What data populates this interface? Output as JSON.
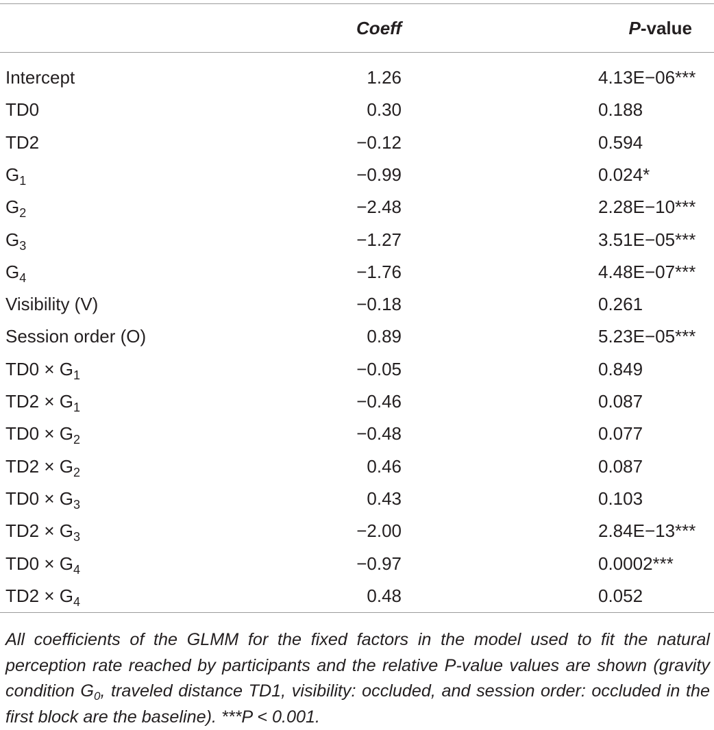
{
  "table": {
    "header": {
      "coeff": "Coeff",
      "pvalue_p": "P",
      "pvalue_rest": "-value"
    },
    "rows": [
      {
        "label": "Intercept",
        "coeff": "1.26",
        "p": "4.13E−06***"
      },
      {
        "label": "TD0",
        "coeff": "0.30",
        "p": "0.188"
      },
      {
        "label": "TD2",
        "coeff": "−0.12",
        "p": "0.594"
      },
      {
        "label": "G",
        "sub": "1",
        "coeff": "−0.99",
        "p": "0.024*"
      },
      {
        "label": "G",
        "sub": "2",
        "coeff": "−2.48",
        "p": "2.28E−10***"
      },
      {
        "label": "G",
        "sub": "3",
        "coeff": "−1.27",
        "p": "3.51E−05***"
      },
      {
        "label": "G",
        "sub": "4",
        "coeff": "−1.76",
        "p": "4.48E−07***"
      },
      {
        "label": "Visibility (V)",
        "coeff": "−0.18",
        "p": "0.261"
      },
      {
        "label": "Session order (O)",
        "coeff": "0.89",
        "p": "5.23E−05***"
      },
      {
        "label": "TD0 × G",
        "sub": "1",
        "coeff": "−0.05",
        "p": "0.849"
      },
      {
        "label": "TD2 × G",
        "sub": "1",
        "coeff": "−0.46",
        "p": "0.087"
      },
      {
        "label": "TD0 × G",
        "sub": "2",
        "coeff": "−0.48",
        "p": "0.077"
      },
      {
        "label": "TD2 × G",
        "sub": "2",
        "coeff": "0.46",
        "p": "0.087"
      },
      {
        "label": "TD0 × G",
        "sub": "3",
        "coeff": "0.43",
        "p": "0.103"
      },
      {
        "label": "TD2 × G",
        "sub": "3",
        "coeff": "−2.00",
        "p": "2.84E−13***"
      },
      {
        "label": "TD0 × G",
        "sub": "4",
        "coeff": "−0.97",
        "p": "0.0002***"
      },
      {
        "label": "TD2 × G",
        "sub": "4",
        "coeff": "0.48",
        "p": "0.052"
      }
    ],
    "footnote": {
      "before": "All coefficients of the GLMM for the fixed factors in the model used to fit the natural perception rate reached by participants and the relative P-value values are shown (gravity condition G",
      "sub": "0",
      "after": ", traveled distance TD1, visibility: occluded, and session order: occluded in the first block are the baseline). ***P < 0.001."
    }
  }
}
